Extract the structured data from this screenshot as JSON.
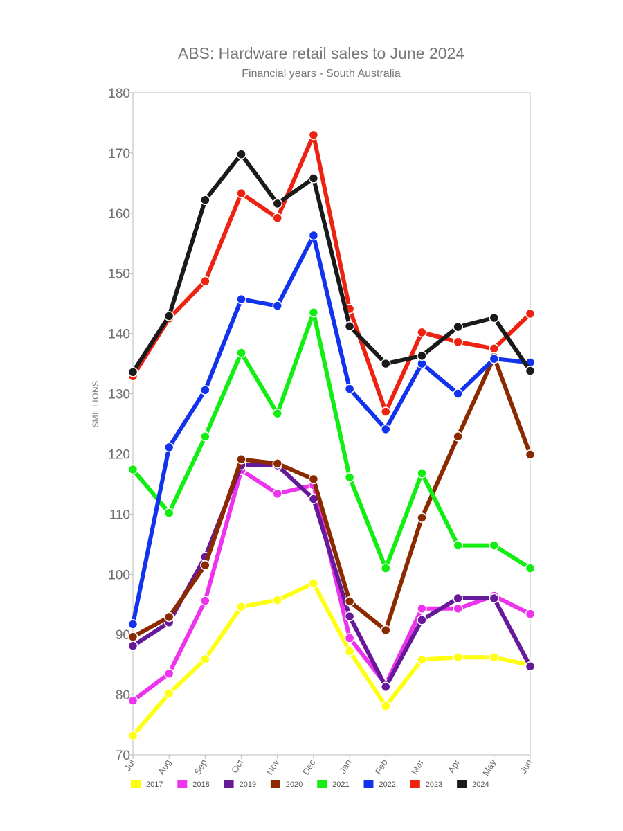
{
  "chart_data": {
    "type": "line",
    "title": "ABS: Hardware retail sales to June 2024",
    "subtitle": "Financial years - South Australia",
    "xlabel": "",
    "ylabel": "$MILLIONS",
    "categories": [
      "Jul",
      "Aug",
      "Sep",
      "Oct",
      "Nov",
      "Dec",
      "Jan",
      "Feb",
      "Mar",
      "Apr",
      "May",
      "Jun"
    ],
    "ylim": [
      70,
      180
    ],
    "yticks": [
      70,
      80,
      90,
      100,
      110,
      120,
      130,
      140,
      150,
      160,
      170,
      180
    ],
    "grid": false,
    "legend_position": "bottom",
    "series": [
      {
        "name": "2017",
        "color": "#ffff11",
        "values": [
          73.2,
          80.2,
          85.9,
          94.6,
          95.7,
          98.5,
          87.2,
          78.1,
          85.8,
          86.2,
          86.2,
          84.9
        ]
      },
      {
        "name": "2018",
        "color": "#ee33ee",
        "values": [
          79.0,
          83.5,
          95.6,
          117.3,
          113.4,
          114.8,
          89.4,
          81.7,
          94.3,
          94.3,
          96.4,
          93.4
        ]
      },
      {
        "name": "2019",
        "color": "#661a99",
        "values": [
          88.1,
          92.0,
          102.9,
          118.1,
          118.1,
          112.5,
          93.0,
          81.3,
          92.4,
          96.0,
          96.0,
          84.7
        ]
      },
      {
        "name": "2020",
        "color": "#8b2a00",
        "values": [
          89.6,
          92.9,
          101.5,
          119.1,
          118.4,
          115.8,
          95.5,
          90.7,
          109.4,
          122.9,
          136.1,
          119.9
        ]
      },
      {
        "name": "2021",
        "color": "#11ee11",
        "values": [
          117.4,
          110.2,
          122.9,
          136.8,
          126.7,
          143.5,
          116.1,
          101.0,
          116.8,
          104.8,
          104.8,
          101.0
        ]
      },
      {
        "name": "2022",
        "color": "#1133ee",
        "values": [
          91.7,
          121.1,
          130.6,
          145.7,
          144.6,
          156.3,
          130.8,
          124.1,
          135.0,
          130.0,
          135.8,
          135.2
        ]
      },
      {
        "name": "2023",
        "color": "#ee2211",
        "values": [
          132.9,
          142.5,
          148.7,
          163.3,
          159.2,
          173.0,
          144.1,
          127.0,
          140.2,
          138.6,
          137.5,
          143.3
        ]
      },
      {
        "name": "2024",
        "color": "#1a1a1a",
        "values": [
          133.6,
          142.9,
          162.2,
          169.8,
          161.6,
          165.8,
          141.2,
          135.0,
          136.3,
          141.1,
          142.6,
          133.8
        ]
      }
    ]
  }
}
